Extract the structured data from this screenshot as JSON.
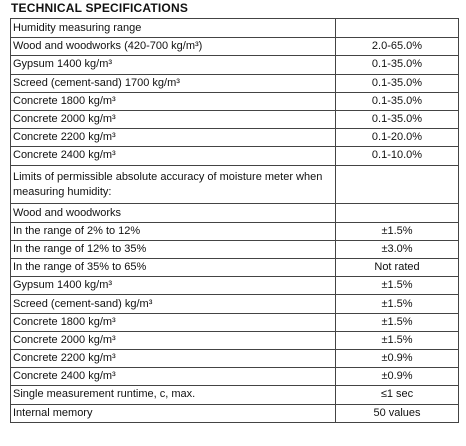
{
  "title": "TECHNICAL SPECIFICATIONS",
  "table": {
    "rows": [
      {
        "label": "Humidity measuring range"
      },
      {
        "label": "Wood and woodworks (420-700 kg/m³)",
        "value": "2.0-65.0%"
      },
      {
        "label": "Gypsum 1400 kg/m³",
        "value": "0.1-35.0%"
      },
      {
        "label": "Screed (cement-sand) 1700 kg/m³",
        "value": "0.1-35.0%"
      },
      {
        "label": "Concrete 1800 kg/m³",
        "value": "0.1-35.0%"
      },
      {
        "label": "Concrete 2000 kg/m³",
        "value": "0.1-35.0%"
      },
      {
        "label": "Concrete 2200 kg/m³",
        "value": "0.1-20.0%"
      },
      {
        "label": "Concrete 2400 kg/m³",
        "value": "0.1-10.0%"
      },
      {
        "label": "Limits of permissible absolute accuracy of moisture meter when measuring humidity:"
      },
      {
        "label": "Wood and woodworks"
      },
      {
        "label": "In the range of 2% to 12%",
        "value": "±1.5%"
      },
      {
        "label": "In the range of 12% to 35%",
        "value": "±3.0%"
      },
      {
        "label": "In the range of 35% to 65%",
        "value": "Not rated"
      },
      {
        "label": "Gypsum 1400 kg/m³",
        "value": "±1.5%"
      },
      {
        "label": "Screed (cement-sand) kg/m³",
        "value": "±1.5%"
      },
      {
        "label": "Concrete 1800 kg/m³",
        "value": "±1.5%"
      },
      {
        "label": "Concrete 2000 kg/m³",
        "value": "±1.5%"
      },
      {
        "label": "Concrete 2200 kg/m³",
        "value": "±0.9%"
      },
      {
        "label": "Concrete 2400 kg/m³",
        "value": "±0.9%"
      },
      {
        "label": "Single measurement runtime, c, max.",
        "value": "≤1 sec"
      },
      {
        "label": "Internal memory",
        "value": "50 values"
      }
    ]
  }
}
